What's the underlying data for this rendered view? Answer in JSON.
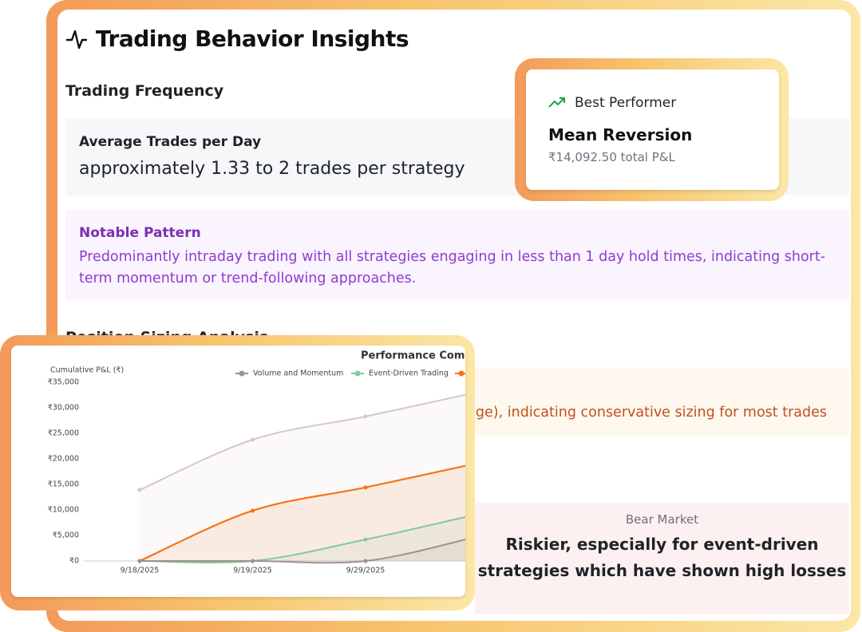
{
  "header": {
    "title": "Trading Behavior Insights"
  },
  "trading_frequency": {
    "heading": "Trading Frequency",
    "metric_label": "Average Trades per Day",
    "metric_value": "approximately 1.33 to 2 trades per strategy"
  },
  "notable_pattern": {
    "heading": "Notable Pattern",
    "text": "Predominantly intraday trading with all strategies engaging in less than 1 day hold times, indicating short-term momentum or trend-following approaches."
  },
  "position_sizing": {
    "heading": "Position Sizing Analysis",
    "text": "erage), indicating conservative sizing for most trades"
  },
  "market": {
    "label": "Bear Market",
    "text": "Riskier, especially for event-driven strategies which have shown high losses"
  },
  "best_performer": {
    "label": "Best Performer",
    "name": "Mean Reversion",
    "pnl": "₹14,092.50 total P&L"
  },
  "chart_data": {
    "type": "line",
    "title": "Performance Compar",
    "y_label": "Cumulative P&L (₹)",
    "categories": [
      "9/18/2025",
      "9/19/2025",
      "9/29/2025",
      null
    ],
    "series": [
      {
        "name": "Volume and Momentum",
        "color": "#a1918c",
        "values": [
          0,
          0,
          0,
          4850
        ]
      },
      {
        "name": "Event-Driven Trading",
        "color": "#82c99d",
        "values": [
          0,
          0,
          4200,
          9200
        ]
      },
      {
        "color": "#f97316",
        "values": [
          0,
          9850,
          14400,
          19200
        ]
      },
      {
        "color": "#d6c8c4",
        "values": [
          13900,
          23750,
          28300,
          33100
        ]
      }
    ],
    "ylim": [
      0,
      35000
    ],
    "yticks": [
      {
        "value": 0,
        "label": "₹0"
      },
      {
        "value": 5000,
        "label": "₹5,000"
      },
      {
        "value": 10000,
        "label": "₹10,000"
      },
      {
        "value": 15000,
        "label": "₹15,000"
      },
      {
        "value": 20000,
        "label": "₹20,000"
      },
      {
        "value": 25000,
        "label": "₹25,000"
      },
      {
        "value": 30000,
        "label": "₹30,000"
      },
      {
        "value": 35000,
        "label": "₹35,000"
      }
    ]
  }
}
